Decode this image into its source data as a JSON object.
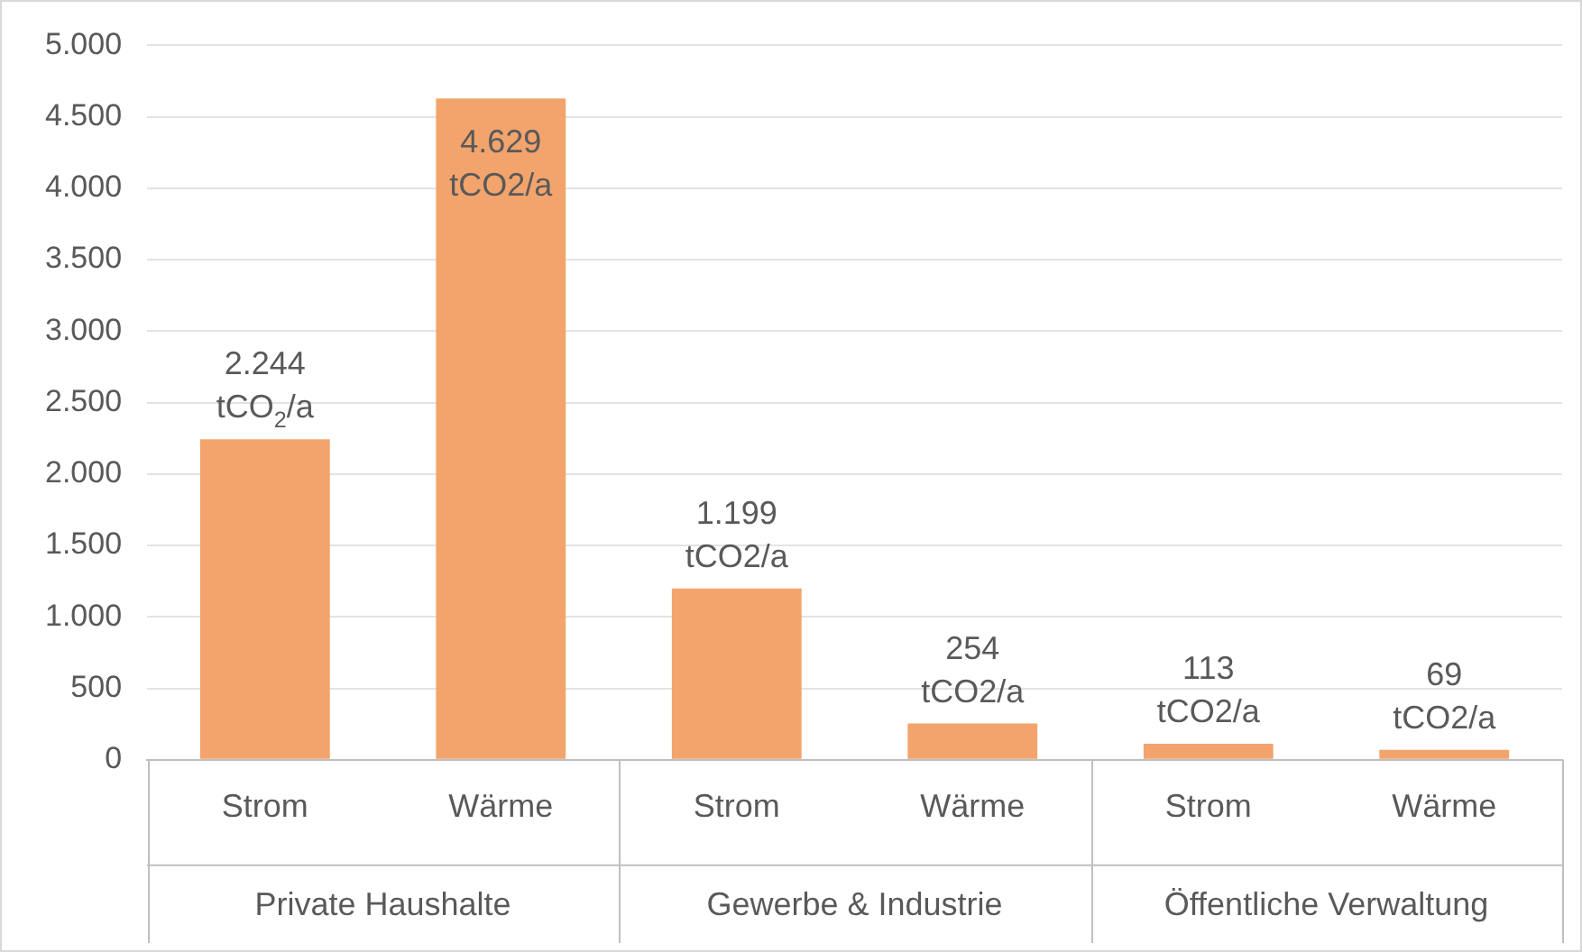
{
  "chart_data": {
    "type": "bar",
    "categories": [
      "Strom",
      "Wärme",
      "Strom",
      "Wärme",
      "Strom",
      "Wärme"
    ],
    "values": [
      2244,
      4629,
      1199,
      254,
      113,
      69
    ],
    "color": "#f2a46c",
    "value_labels": [
      "2.244 tCO$_{2}$/a",
      "4.629 tCO2/a",
      "1.199 tCO2/a",
      "254 tCO2/a",
      "113 tCO2/a",
      "69 tCO2/a"
    ],
    "annotations": [
      "Private Haushalte",
      "Gewerbe & Industrie",
      "Öffentliche Verwaltung"
    ],
    "ylim": [
      0,
      5000
    ],
    "yticks": [
      {
        "value": 0,
        "label": "0"
      },
      {
        "value": 500,
        "label": "500"
      },
      {
        "value": 1000,
        "label": "1.000"
      },
      {
        "value": 1500,
        "label": "1.500"
      },
      {
        "value": 2000,
        "label": "2.000"
      },
      {
        "value": 2500,
        "label": "2.500"
      },
      {
        "value": 3000,
        "label": "3.000"
      },
      {
        "value": 3500,
        "label": "3.500"
      },
      {
        "value": 4000,
        "label": "4.000"
      },
      {
        "value": 4500,
        "label": "4.500"
      },
      {
        "value": 5000,
        "label": "5.000"
      }
    ],
    "grid": "y",
    "legend": false
  }
}
